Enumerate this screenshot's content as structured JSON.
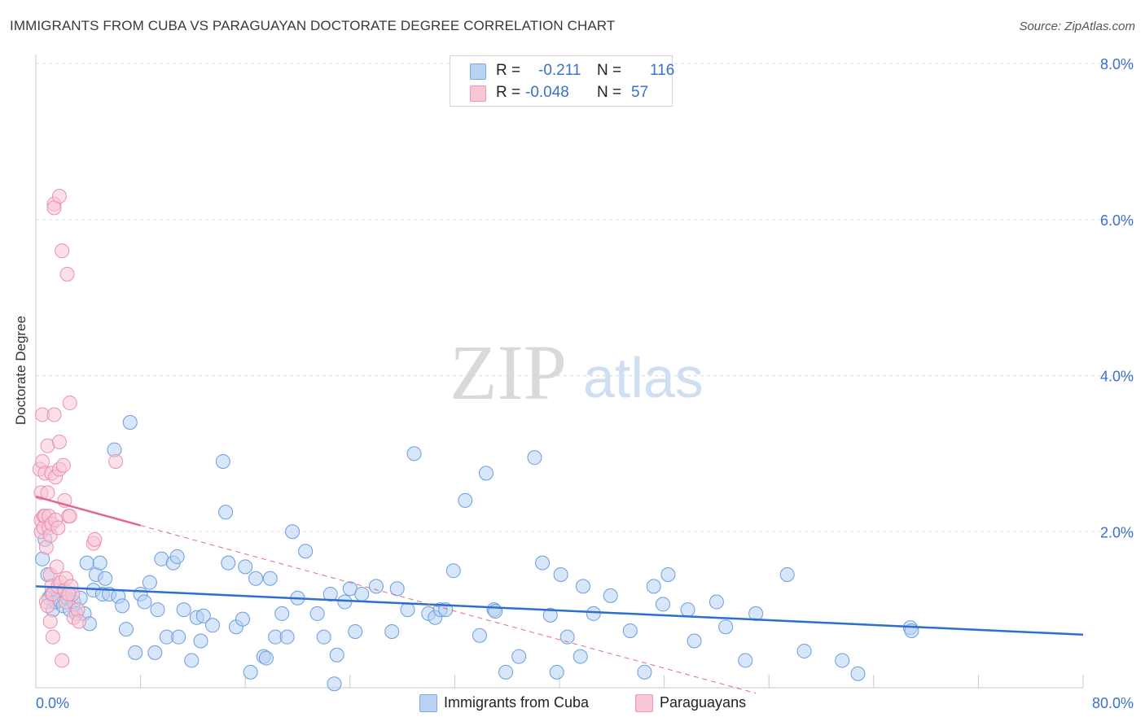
{
  "title": "IMMIGRANTS FROM CUBA VS PARAGUAYAN DOCTORATE DEGREE CORRELATION CHART",
  "source": "Source: ZipAtlas.com",
  "watermark": {
    "zip": "ZIP",
    "atlas": "atlas"
  },
  "stats": {
    "row1": {
      "r_label": "R =",
      "r_value": "-0.211",
      "n_label": "N =",
      "n_value": "116"
    },
    "row2": {
      "r_label": "R =",
      "r_value": "-0.048",
      "n_label": "N =",
      "n_value": "57"
    }
  },
  "legend": {
    "series1": "Immigrants from Cuba",
    "series2": "Paraguayans"
  },
  "colors": {
    "blue": "#6b9de0",
    "blue_fill": "#b7d2f3",
    "blue_line": "#2b6fcf",
    "pink": "#ec8fae",
    "pink_fill": "#f8c6d6",
    "pink_line": "#e2678f",
    "axis_label": "#3b6fd0"
  },
  "chart_data": {
    "type": "scatter",
    "title": "IMMIGRANTS FROM CUBA VS PARAGUAYAN DOCTORATE DEGREE CORRELATION CHART",
    "xlabel": "",
    "ylabel": "Doctorate Degree",
    "xlim": [
      0,
      80
    ],
    "ylim": [
      0,
      8.0
    ],
    "x_tick_labels": [
      "0.0%",
      "80.0%"
    ],
    "y_tick_values": [
      2.0,
      4.0,
      6.0,
      8.0
    ],
    "y_tick_labels": [
      "2.0%",
      "4.0%",
      "6.0%",
      "8.0%"
    ],
    "grid": "horizontal dashed",
    "legend_position": "bottom-center",
    "series": [
      {
        "name": "Immigrants from Cuba",
        "trend": {
          "x": [
            0,
            80
          ],
          "y": [
            1.3,
            0.68
          ]
        },
        "points": [
          [
            0.5,
            1.65
          ],
          [
            0.7,
            1.9
          ],
          [
            0.9,
            1.45
          ],
          [
            1.0,
            1.15
          ],
          [
            1.2,
            1.2
          ],
          [
            1.3,
            1.0
          ],
          [
            1.5,
            1.1
          ],
          [
            1.6,
            1.25
          ],
          [
            1.8,
            1.12
          ],
          [
            2.1,
            1.05
          ],
          [
            2.4,
            1.15
          ],
          [
            2.6,
            1.0
          ],
          [
            2.9,
            1.1
          ],
          [
            3.1,
            0.95
          ],
          [
            3.4,
            1.15
          ],
          [
            3.7,
            0.95
          ],
          [
            3.9,
            1.6
          ],
          [
            4.1,
            0.82
          ],
          [
            4.4,
            1.25
          ],
          [
            4.6,
            1.45
          ],
          [
            4.9,
            1.6
          ],
          [
            5.1,
            1.2
          ],
          [
            5.3,
            1.4
          ],
          [
            5.6,
            1.2
          ],
          [
            6.0,
            3.05
          ],
          [
            6.3,
            1.17
          ],
          [
            6.6,
            1.05
          ],
          [
            6.9,
            0.75
          ],
          [
            7.2,
            3.4
          ],
          [
            7.6,
            0.45
          ],
          [
            8.0,
            1.2
          ],
          [
            8.3,
            1.1
          ],
          [
            8.7,
            1.35
          ],
          [
            9.1,
            0.45
          ],
          [
            9.3,
            1.0
          ],
          [
            9.6,
            1.65
          ],
          [
            10.0,
            0.65
          ],
          [
            10.5,
            1.6
          ],
          [
            10.8,
            1.68
          ],
          [
            10.9,
            0.65
          ],
          [
            11.3,
            1.0
          ],
          [
            11.9,
            0.35
          ],
          [
            12.3,
            0.9
          ],
          [
            12.6,
            0.6
          ],
          [
            12.8,
            0.92
          ],
          [
            13.5,
            0.8
          ],
          [
            14.3,
            2.9
          ],
          [
            14.5,
            2.25
          ],
          [
            14.7,
            1.6
          ],
          [
            15.3,
            0.78
          ],
          [
            15.8,
            0.88
          ],
          [
            16.0,
            1.55
          ],
          [
            16.4,
            0.2
          ],
          [
            16.8,
            1.4
          ],
          [
            17.4,
            0.4
          ],
          [
            17.6,
            0.38
          ],
          [
            17.9,
            1.4
          ],
          [
            18.3,
            0.65
          ],
          [
            18.8,
            0.95
          ],
          [
            19.2,
            0.65
          ],
          [
            19.6,
            2.0
          ],
          [
            20.0,
            1.15
          ],
          [
            20.6,
            1.75
          ],
          [
            21.5,
            0.95
          ],
          [
            22.0,
            0.65
          ],
          [
            22.5,
            1.2
          ],
          [
            22.8,
            0.05
          ],
          [
            23.0,
            0.42
          ],
          [
            23.6,
            1.1
          ],
          [
            24.0,
            1.27
          ],
          [
            24.4,
            0.72
          ],
          [
            24.9,
            1.2
          ],
          [
            26.0,
            1.3
          ],
          [
            27.2,
            0.72
          ],
          [
            27.6,
            1.27
          ],
          [
            28.4,
            1.0
          ],
          [
            28.9,
            3.0
          ],
          [
            30.0,
            0.95
          ],
          [
            30.5,
            0.9
          ],
          [
            30.9,
            1.0
          ],
          [
            31.3,
            1.0
          ],
          [
            31.9,
            1.5
          ],
          [
            32.8,
            2.4
          ],
          [
            33.9,
            0.67
          ],
          [
            34.4,
            2.75
          ],
          [
            35.0,
            1.0
          ],
          [
            35.1,
            0.98
          ],
          [
            35.9,
            0.2
          ],
          [
            36.9,
            0.4
          ],
          [
            38.1,
            2.95
          ],
          [
            38.7,
            1.6
          ],
          [
            39.3,
            0.93
          ],
          [
            39.8,
            0.2
          ],
          [
            40.1,
            1.45
          ],
          [
            40.6,
            0.65
          ],
          [
            41.6,
            0.4
          ],
          [
            41.8,
            1.3
          ],
          [
            42.6,
            0.95
          ],
          [
            43.9,
            1.18
          ],
          [
            45.4,
            0.73
          ],
          [
            46.5,
            0.2
          ],
          [
            47.2,
            1.3
          ],
          [
            47.9,
            1.07
          ],
          [
            48.3,
            1.45
          ],
          [
            49.8,
            1.0
          ],
          [
            50.3,
            0.6
          ],
          [
            52.0,
            1.1
          ],
          [
            52.7,
            0.78
          ],
          [
            54.2,
            0.35
          ],
          [
            55.0,
            0.95
          ],
          [
            57.4,
            1.45
          ],
          [
            58.7,
            0.47
          ],
          [
            61.6,
            0.35
          ],
          [
            62.8,
            0.18
          ],
          [
            66.8,
            0.77
          ],
          [
            66.9,
            0.73
          ]
        ]
      },
      {
        "name": "Paraguayans",
        "trend": {
          "x": [
            0,
            8
          ],
          "y": [
            2.45,
            2.08
          ]
        },
        "trend_extended": {
          "x": [
            8,
            55
          ],
          "y": [
            2.08,
            -0.07
          ]
        },
        "points": [
          [
            0.3,
            2.8
          ],
          [
            0.4,
            2.5
          ],
          [
            0.4,
            2.15
          ],
          [
            0.4,
            2.0
          ],
          [
            0.5,
            3.5
          ],
          [
            0.5,
            2.9
          ],
          [
            0.6,
            2.2
          ],
          [
            0.6,
            2.05
          ],
          [
            0.7,
            2.75
          ],
          [
            0.7,
            2.2
          ],
          [
            0.8,
            1.8
          ],
          [
            0.8,
            1.1
          ],
          [
            0.9,
            3.1
          ],
          [
            0.9,
            2.5
          ],
          [
            0.9,
            1.05
          ],
          [
            1.0,
            2.2
          ],
          [
            1.0,
            2.05
          ],
          [
            1.1,
            1.95
          ],
          [
            1.1,
            1.45
          ],
          [
            1.1,
            0.85
          ],
          [
            1.2,
            2.75
          ],
          [
            1.2,
            2.1
          ],
          [
            1.2,
            1.3
          ],
          [
            1.3,
            1.2
          ],
          [
            1.3,
            0.65
          ],
          [
            1.4,
            6.2
          ],
          [
            1.4,
            6.15
          ],
          [
            1.4,
            3.5
          ],
          [
            1.5,
            2.7
          ],
          [
            1.5,
            2.15
          ],
          [
            1.6,
            1.55
          ],
          [
            1.7,
            1.3
          ],
          [
            1.7,
            2.05
          ],
          [
            1.8,
            3.15
          ],
          [
            1.8,
            6.3
          ],
          [
            1.8,
            2.8
          ],
          [
            1.9,
            1.35
          ],
          [
            2.0,
            5.6
          ],
          [
            2.0,
            0.35
          ],
          [
            2.1,
            2.85
          ],
          [
            2.2,
            2.4
          ],
          [
            2.2,
            1.25
          ],
          [
            2.3,
            1.4
          ],
          [
            2.3,
            1.1
          ],
          [
            2.4,
            5.3
          ],
          [
            2.5,
            2.2
          ],
          [
            2.6,
            2.2
          ],
          [
            2.6,
            3.65
          ],
          [
            2.7,
            1.3
          ],
          [
            2.8,
            1.2
          ],
          [
            2.9,
            0.9
          ],
          [
            3.2,
            1.0
          ],
          [
            3.3,
            0.85
          ],
          [
            4.4,
            1.85
          ],
          [
            4.5,
            1.9
          ],
          [
            6.1,
            2.9
          ],
          [
            2.5,
            1.2
          ]
        ]
      }
    ]
  }
}
